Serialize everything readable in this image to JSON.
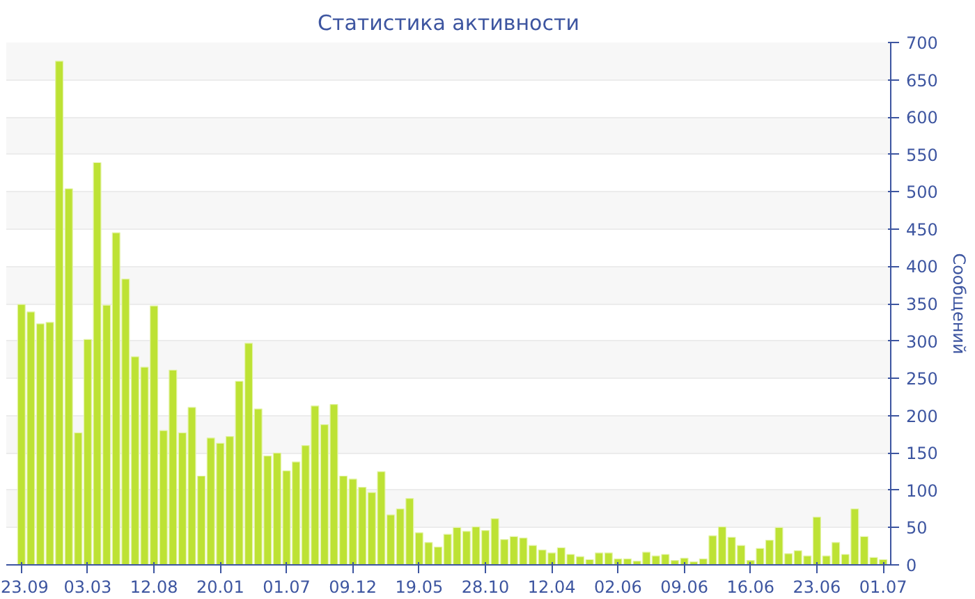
{
  "chart_data": {
    "type": "bar",
    "title": "Статистика активности",
    "ylabel": "Сообщений",
    "categories": [
      "23.09",
      null,
      null,
      null,
      null,
      null,
      null,
      "03.03",
      null,
      null,
      null,
      null,
      null,
      null,
      "12.08",
      null,
      null,
      null,
      null,
      null,
      null,
      "20.01",
      null,
      null,
      null,
      null,
      null,
      null,
      "01.07",
      null,
      null,
      null,
      null,
      null,
      null,
      "09.12",
      null,
      null,
      null,
      null,
      null,
      null,
      "19.05",
      null,
      null,
      null,
      null,
      null,
      null,
      "28.10",
      null,
      null,
      null,
      null,
      null,
      null,
      "12.04",
      null,
      null,
      null,
      null,
      null,
      null,
      "02.06",
      null,
      null,
      null,
      null,
      null,
      null,
      "09.06",
      null,
      null,
      null,
      null,
      null,
      null,
      "16.06",
      null,
      null,
      null,
      null,
      null,
      null,
      "23.06",
      null,
      null,
      null,
      null,
      null,
      null,
      "01.07"
    ],
    "values": [
      349,
      339,
      323,
      325,
      675,
      504,
      177,
      302,
      539,
      348,
      445,
      383,
      279,
      265,
      347,
      180,
      261,
      177,
      211,
      119,
      170,
      163,
      172,
      246,
      297,
      209,
      146,
      150,
      126,
      138,
      160,
      213,
      188,
      215,
      119,
      115,
      104,
      97,
      125,
      67,
      75,
      89,
      43,
      30,
      24,
      41,
      50,
      45,
      51,
      46,
      62,
      34,
      38,
      36,
      26,
      20,
      16,
      23,
      14,
      11,
      7,
      16,
      16,
      8,
      8,
      5,
      17,
      12,
      14,
      6,
      9,
      4,
      8,
      39,
      51,
      37,
      26,
      6,
      22,
      33,
      50,
      15,
      19,
      12,
      64,
      12,
      30,
      14,
      75,
      38,
      10,
      7
    ],
    "color": "#bde234",
    "ylim": [
      0,
      700
    ],
    "yticks": [
      0,
      50,
      100,
      150,
      200,
      250,
      300,
      350,
      400,
      450,
      500,
      550,
      600,
      650,
      700
    ],
    "grid": "y"
  }
}
